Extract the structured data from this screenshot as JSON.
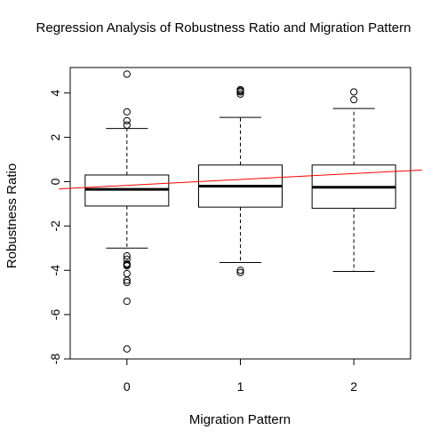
{
  "chart_data": {
    "type": "boxplot",
    "title": "Regression Analysis of Robustness Ratio and Migration Pattern",
    "xlabel": "Migration Pattern",
    "ylabel": "Robustness Ratio",
    "categories": [
      "0",
      "1",
      "2"
    ],
    "x_ticks": [
      "0",
      "1",
      "2"
    ],
    "y_ticks": [
      -8,
      -6,
      -4,
      -2,
      0,
      2,
      4
    ],
    "ylim": [
      -8,
      5
    ],
    "boxes": [
      {
        "category": "0",
        "whisker_low": -3.0,
        "q1": -1.1,
        "median": -0.35,
        "q3": 0.3,
        "whisker_high": 2.4,
        "outliers": [
          4.85,
          3.15,
          2.75,
          2.55,
          -3.35,
          -3.5,
          -3.7,
          -3.75,
          -3.8,
          -4.15,
          -4.45,
          -4.55,
          -5.4,
          -7.55
        ]
      },
      {
        "category": "1",
        "whisker_low": -3.65,
        "q1": -1.15,
        "median": -0.2,
        "q3": 0.75,
        "whisker_high": 2.9,
        "outliers": [
          4.15,
          4.1,
          4.05,
          3.95,
          -4.0,
          -4.1
        ]
      },
      {
        "category": "2",
        "whisker_low": -4.05,
        "q1": -1.2,
        "median": -0.25,
        "q3": 0.75,
        "whisker_high": 3.3,
        "outliers": [
          4.05,
          3.7
        ]
      }
    ],
    "regression_line": {
      "color": "#ff0000",
      "points": [
        {
          "x": -0.5,
          "y": -0.3
        },
        {
          "x": 2.5,
          "y": 0.5
        }
      ]
    },
    "grid": false,
    "legend": "none"
  }
}
